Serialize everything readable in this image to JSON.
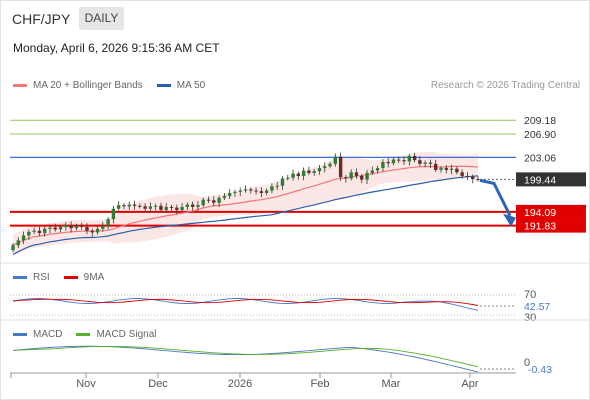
{
  "header": {
    "symbol": "CHF/JPY",
    "timeframe": "DAILY",
    "datetime": "Monday, April 6, 2026 9:15:36 AM CET"
  },
  "legend": {
    "ma20": "MA 20 + Bollinger Bands",
    "ma50": "MA 50",
    "credit": "Research © 2026 Trading Central"
  },
  "rsi_legend": {
    "rsi": "RSI",
    "ma": "9MA"
  },
  "macd_legend": {
    "macd": "MACD",
    "signal": "MACD Signal"
  },
  "colors": {
    "ma20": "#f07878",
    "ma50": "#2c5fa8",
    "resistance": "#3a6fd8",
    "support": "#e00000",
    "target": "#8cc860",
    "price_tag": "#333333",
    "arrow": "#2a64b6"
  },
  "chart_data": {
    "type": "candlestick",
    "ylim": [
      186.5,
      213.0
    ],
    "x_ticks": [
      "Nov",
      "Dec",
      "2026",
      "Feb",
      "Mar",
      "Apr"
    ],
    "levels": [
      {
        "value": "209.18",
        "kind": "target"
      },
      {
        "value": "206.90",
        "kind": "target"
      },
      {
        "value": "203.06",
        "kind": "resistance"
      },
      {
        "value": "199.44",
        "kind": "last"
      },
      {
        "value": "194.09",
        "kind": "support"
      },
      {
        "value": "191.83",
        "kind": "support"
      }
    ],
    "closes": [
      188.6,
      189.4,
      190.2,
      190.8,
      191.0,
      190.6,
      191.3,
      191.5,
      191.2,
      191.6,
      191.9,
      191.4,
      191.8,
      191.6,
      191.0,
      190.7,
      191.3,
      191.8,
      192.9,
      194.6,
      195.2,
      195.0,
      195.3,
      195.1,
      195.0,
      194.6,
      195.0,
      195.1,
      194.4,
      194.9,
      194.8,
      194.4,
      194.9,
      195.3,
      194.9,
      195.2,
      196.1,
      196.0,
      195.6,
      196.4,
      196.7,
      197.2,
      197.4,
      197.6,
      197.8,
      197.6,
      197.5,
      197.2,
      197.6,
      198.3,
      198.4,
      199.6,
      199.7,
      200.4,
      200.0,
      200.9,
      200.5,
      200.8,
      201.3,
      201.6,
      202.0,
      203.2,
      199.8,
      199.6,
      200.6,
      200.0,
      199.4,
      200.5,
      200.9,
      201.3,
      202.3,
      202.1,
      202.7,
      202.6,
      202.4,
      203.3,
      202.6,
      202.0,
      202.2,
      202.0,
      201.0,
      201.3,
      201.0,
      201.2,
      200.6,
      200.0,
      199.9,
      199.5,
      199.44
    ],
    "rsi": {
      "levels": [
        "70",
        "30"
      ],
      "last": "42.57"
    },
    "macd": {
      "zero_label": "0",
      "last": "-0.43"
    }
  }
}
